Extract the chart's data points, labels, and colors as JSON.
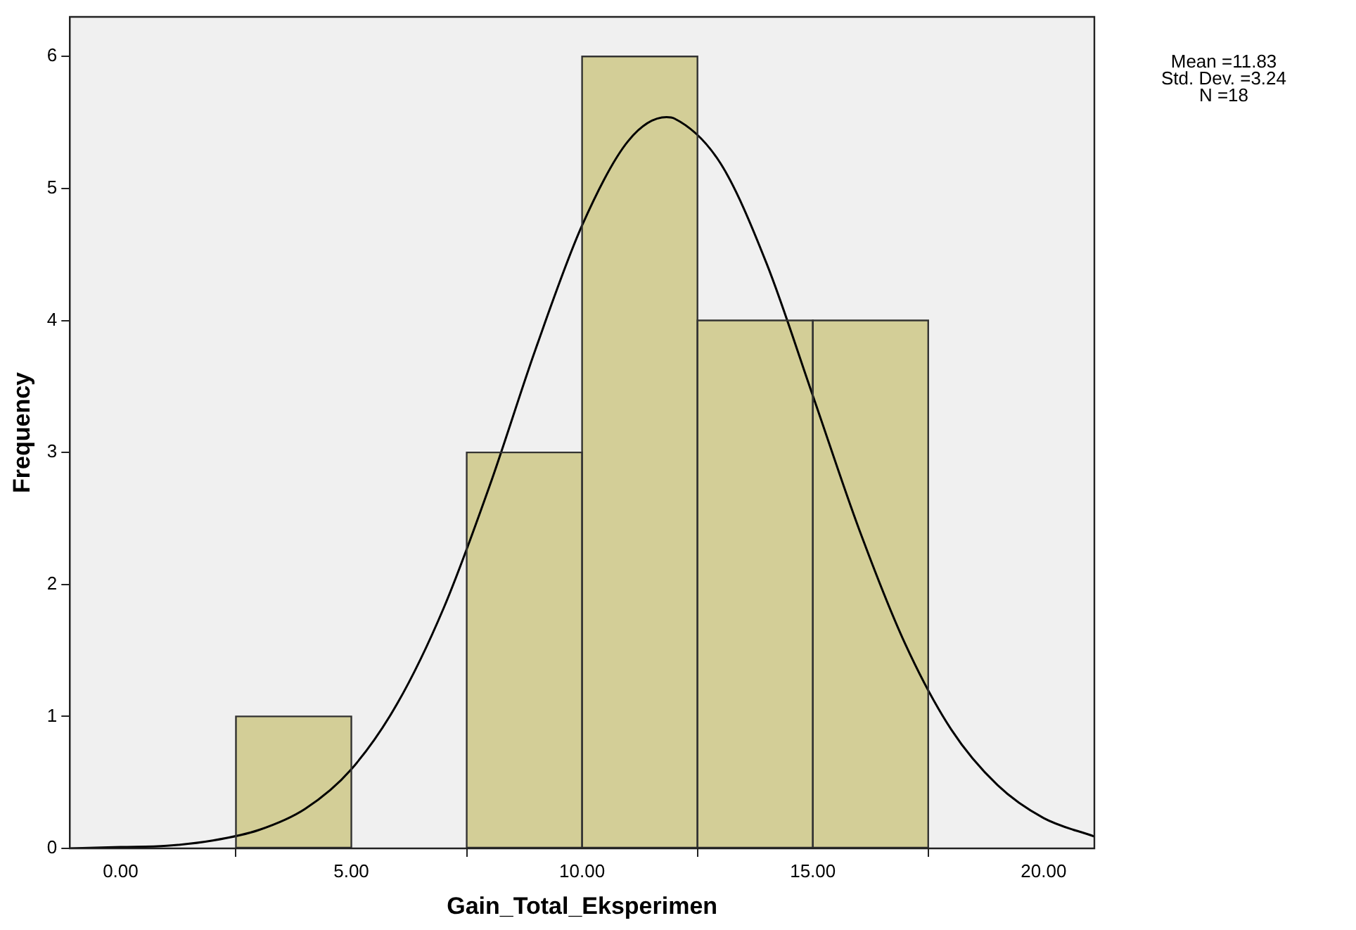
{
  "chart_data": {
    "type": "histogram",
    "xlabel": "Gain_Total_Eksperimen",
    "ylabel": "Frequency",
    "bins": [
      2.5,
      5,
      7.5,
      10,
      12.5,
      15,
      17.5
    ],
    "values": [
      1,
      0,
      3,
      6,
      4,
      4
    ],
    "color": "#d3ce97",
    "series": [
      {
        "type": "line",
        "color": "#000000",
        "x": [
          -1.1,
          0,
          1,
          2,
          3,
          4,
          5,
          6,
          7,
          8,
          9,
          10,
          11,
          11.83,
          12,
          13,
          14,
          15,
          16,
          17,
          18,
          19,
          20,
          21.1
        ],
        "values": [
          0,
          0.01,
          0.02,
          0.06,
          0.14,
          0.3,
          0.6,
          1.1,
          1.82,
          2.75,
          3.79,
          4.72,
          5.36,
          5.54,
          5.53,
          5.19,
          4.43,
          3.43,
          2.42,
          1.55,
          0.9,
          0.48,
          0.23,
          0.09
        ]
      }
    ],
    "xlim": [
      -1.1,
      21.1
    ],
    "xticks": [
      {
        "value": 0,
        "label": "0.00"
      },
      {
        "value": 5,
        "label": "5.00"
      },
      {
        "value": 10,
        "label": "10.00"
      },
      {
        "value": 15,
        "label": "15.00"
      },
      {
        "value": 20,
        "label": "20.00"
      }
    ],
    "ylim": [
      0,
      6.3
    ],
    "yticks": [
      0,
      1,
      2,
      3,
      4,
      5,
      6
    ],
    "grid": false,
    "legend": false,
    "marker": "none",
    "line_style": "solid",
    "annotations": [
      "Mean =11.83",
      "Std. Dev. =3.24",
      "N =18"
    ]
  }
}
